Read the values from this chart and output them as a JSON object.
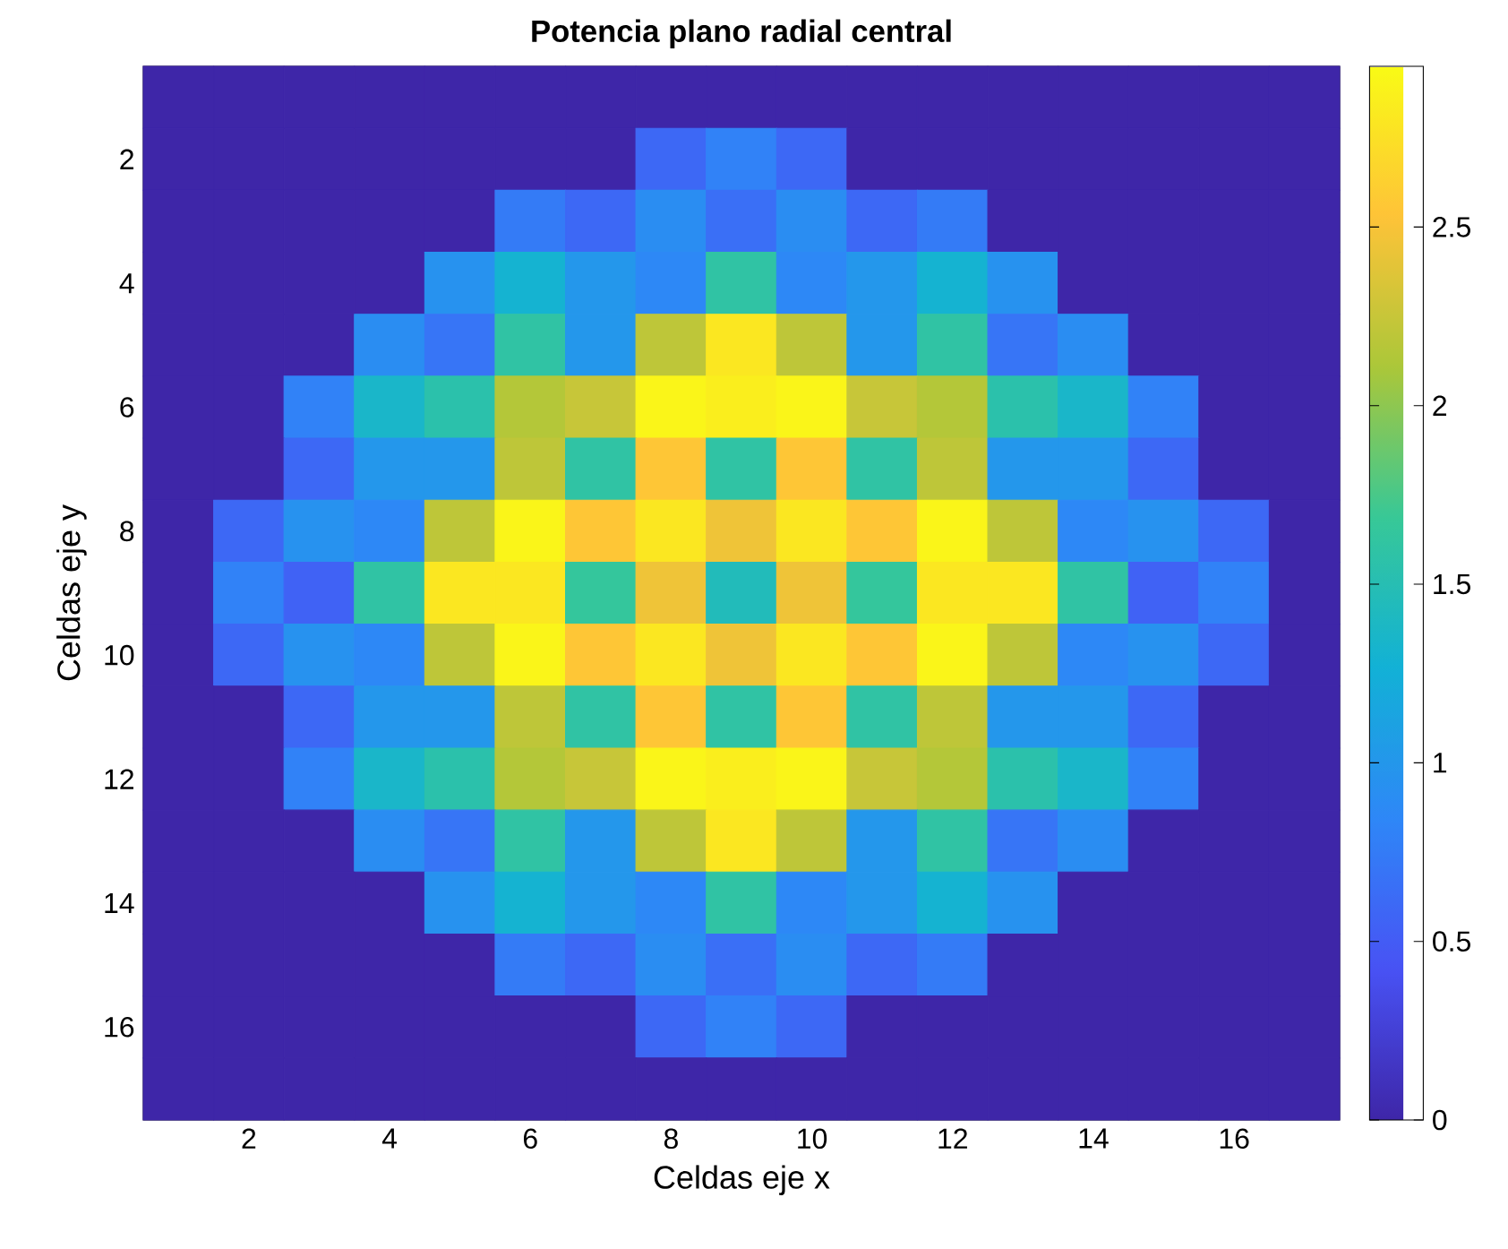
{
  "chart_data": {
    "type": "heatmap",
    "title": "Potencia plano radial central",
    "xlabel": "Celdas eje x",
    "ylabel": "Celdas eje y",
    "x": [
      1,
      2,
      3,
      4,
      5,
      6,
      7,
      8,
      9,
      10,
      11,
      12,
      13,
      14,
      15,
      16,
      17
    ],
    "y": [
      1,
      2,
      3,
      4,
      5,
      6,
      7,
      8,
      9,
      10,
      11,
      12,
      13,
      14,
      15,
      16,
      17
    ],
    "xlim": [
      0.5,
      17.5
    ],
    "xticks": [
      2,
      4,
      6,
      8,
      10,
      12,
      14,
      16
    ],
    "ylim": [
      17.5,
      0.5
    ],
    "yticks": [
      2,
      4,
      6,
      8,
      10,
      12,
      14,
      16
    ],
    "clim": [
      0,
      2.95
    ],
    "cticks": [
      0,
      0.5,
      1,
      1.5,
      2,
      2.5
    ],
    "cells": [
      [
        0,
        0,
        0,
        0,
        0,
        0,
        0,
        0,
        0,
        0,
        0,
        0,
        0,
        0,
        0,
        0,
        0
      ],
      [
        0,
        0,
        0,
        0,
        0,
        0,
        0,
        0.6,
        0.8,
        0.6,
        0,
        0,
        0,
        0,
        0,
        0,
        0
      ],
      [
        0,
        0,
        0,
        0,
        0,
        0.75,
        0.6,
        0.9,
        0.65,
        0.9,
        0.6,
        0.75,
        0,
        0,
        0,
        0,
        0
      ],
      [
        0,
        0,
        0,
        0,
        0.95,
        1.3,
        1.0,
        0.85,
        1.6,
        0.85,
        1.0,
        1.3,
        0.95,
        0,
        0,
        0,
        0
      ],
      [
        0,
        0,
        0,
        0.9,
        0.7,
        1.6,
        1.0,
        2.2,
        2.8,
        2.2,
        1.0,
        1.6,
        0.7,
        0.9,
        0,
        0,
        0
      ],
      [
        0,
        0,
        0.8,
        1.35,
        1.55,
        2.15,
        2.25,
        2.9,
        2.85,
        2.9,
        2.25,
        2.15,
        1.55,
        1.35,
        0.8,
        0,
        0
      ],
      [
        0,
        0,
        0.6,
        1.0,
        1.0,
        2.2,
        1.6,
        2.55,
        1.6,
        2.55,
        1.6,
        2.2,
        1.0,
        1.0,
        0.6,
        0,
        0
      ],
      [
        0,
        0.6,
        0.95,
        0.85,
        2.2,
        2.9,
        2.55,
        2.8,
        2.45,
        2.8,
        2.55,
        2.9,
        2.2,
        0.85,
        0.95,
        0.6,
        0
      ],
      [
        0,
        0.8,
        0.55,
        1.6,
        2.8,
        2.8,
        1.65,
        2.45,
        1.45,
        2.45,
        1.65,
        2.8,
        2.8,
        1.6,
        0.55,
        0.8,
        0
      ],
      [
        0,
        0.6,
        0.95,
        0.85,
        2.2,
        2.9,
        2.55,
        2.8,
        2.45,
        2.8,
        2.55,
        2.9,
        2.2,
        0.85,
        0.95,
        0.6,
        0
      ],
      [
        0,
        0,
        0.6,
        1.0,
        1.0,
        2.2,
        1.6,
        2.55,
        1.6,
        2.55,
        1.6,
        2.2,
        1.0,
        1.0,
        0.6,
        0,
        0
      ],
      [
        0,
        0,
        0.8,
        1.35,
        1.55,
        2.15,
        2.25,
        2.9,
        2.85,
        2.9,
        2.25,
        2.15,
        1.55,
        1.35,
        0.8,
        0,
        0
      ],
      [
        0,
        0,
        0,
        0.9,
        0.7,
        1.6,
        1.0,
        2.2,
        2.8,
        2.2,
        1.0,
        1.6,
        0.7,
        0.9,
        0,
        0,
        0
      ],
      [
        0,
        0,
        0,
        0,
        0.95,
        1.3,
        1.0,
        0.85,
        1.6,
        0.85,
        1.0,
        1.3,
        0.95,
        0,
        0,
        0,
        0
      ],
      [
        0,
        0,
        0,
        0,
        0,
        0.75,
        0.6,
        0.9,
        0.65,
        0.9,
        0.6,
        0.75,
        0,
        0,
        0,
        0,
        0
      ],
      [
        0,
        0,
        0,
        0,
        0,
        0,
        0,
        0.6,
        0.8,
        0.6,
        0,
        0,
        0,
        0,
        0,
        0,
        0
      ],
      [
        0,
        0,
        0,
        0,
        0,
        0,
        0,
        0,
        0,
        0,
        0,
        0,
        0,
        0,
        0,
        0,
        0
      ]
    ]
  }
}
